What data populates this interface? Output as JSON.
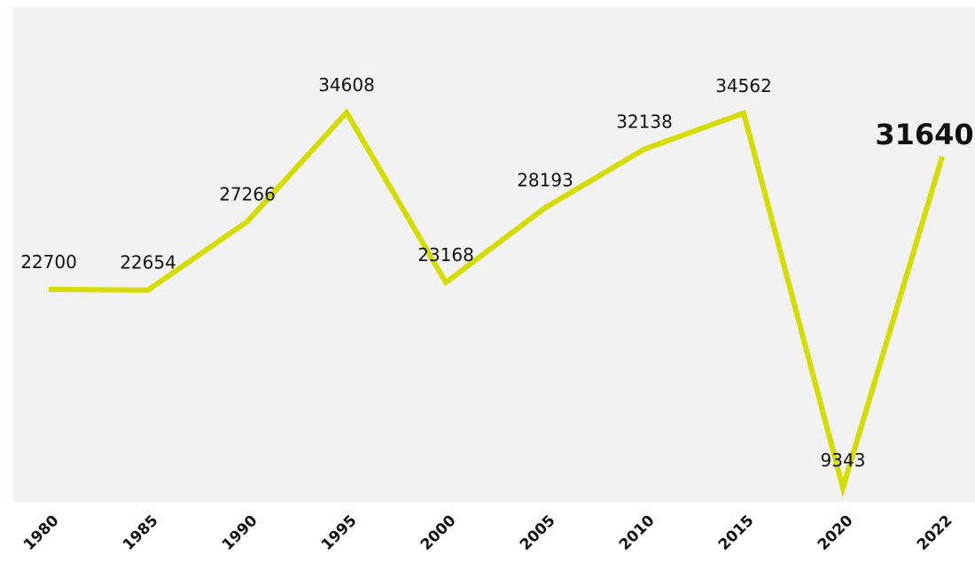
{
  "chart_data": {
    "type": "line",
    "categories": [
      "1980",
      "1985",
      "1990",
      "1995",
      "2000",
      "2005",
      "2010",
      "2015",
      "2020",
      "2022"
    ],
    "series": [
      {
        "name": null,
        "color": "#d4dc00",
        "values": [
          22700,
          22654,
          27266,
          34608,
          23168,
          28193,
          32138,
          34562,
          9343,
          31640
        ]
      }
    ],
    "ylim": [
      8400,
      41700
    ],
    "background": "#f2f2f2"
  }
}
